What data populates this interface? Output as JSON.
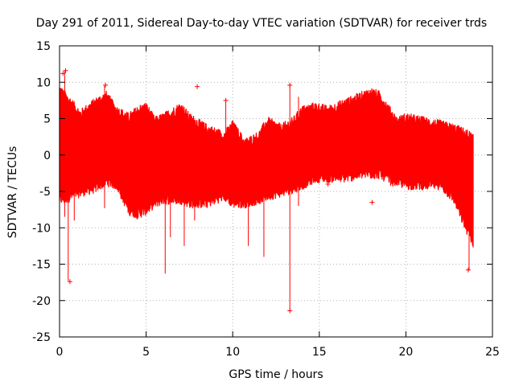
{
  "chart_data": {
    "type": "scatter",
    "title": "Day 291 of 2011, Sidereal Day-to-day VTEC variation (SDTVAR) for receiver trds",
    "xlabel": "GPS time / hours",
    "ylabel": "SDTVAR / TECUs",
    "xlim": [
      0,
      25
    ],
    "ylim": [
      -25,
      15
    ],
    "xticks": [
      0,
      5,
      10,
      15,
      20,
      25
    ],
    "yticks": [
      -25,
      -20,
      -15,
      -10,
      -5,
      0,
      5,
      10,
      15
    ],
    "grid": true,
    "marker": "+",
    "color": "#ff0000",
    "band": {
      "x": [
        0.0,
        0.3,
        0.7,
        1.2,
        2.0,
        2.7,
        3.3,
        4.0,
        4.5,
        5.0,
        5.5,
        6.0,
        7.0,
        7.5,
        8.5,
        9.5,
        10.0,
        10.7,
        11.5,
        12.0,
        12.8,
        13.5,
        14.0,
        14.8,
        15.5,
        16.5,
        17.5,
        18.0,
        18.5,
        19.2,
        19.5,
        20.0,
        21.0,
        22.0,
        22.8,
        23.3,
        23.7,
        23.9
      ],
      "upper": [
        9.0,
        8.0,
        7.0,
        5.5,
        7.0,
        8.0,
        6.0,
        5.0,
        6.0,
        6.5,
        4.5,
        5.0,
        6.5,
        5.0,
        3.5,
        2.5,
        4.0,
        1.5,
        2.5,
        4.5,
        3.5,
        4.5,
        6.0,
        6.5,
        6.0,
        7.0,
        8.0,
        8.5,
        8.0,
        5.5,
        4.5,
        5.0,
        4.5,
        4.0,
        3.5,
        3.0,
        2.5,
        2.0
      ],
      "lower": [
        -6.0,
        -6.0,
        -5.5,
        -5.0,
        -4.5,
        -3.5,
        -4.0,
        -7.5,
        -8.0,
        -7.5,
        -6.5,
        -6.0,
        -6.0,
        -6.5,
        -6.5,
        -5.5,
        -6.5,
        -6.5,
        -6.0,
        -5.5,
        -5.0,
        -4.5,
        -4.0,
        -3.0,
        -3.0,
        -3.0,
        -2.5,
        -2.5,
        -2.5,
        -3.5,
        -3.5,
        -4.0,
        -4.0,
        -4.0,
        -6.0,
        -9.0,
        -11.0,
        -12.0
      ]
    },
    "spikes": [
      {
        "x": 0.3,
        "y1": 11.5,
        "y2": -8.5
      },
      {
        "x": 0.5,
        "y1": 7.0,
        "y2": -17.3
      },
      {
        "x": 0.85,
        "y1": 6.0,
        "y2": -9.0
      },
      {
        "x": 2.6,
        "y1": 9.5,
        "y2": -7.3
      },
      {
        "x": 6.1,
        "y1": 5.0,
        "y2": -16.3
      },
      {
        "x": 6.4,
        "y1": 4.0,
        "y2": -11.3
      },
      {
        "x": 7.2,
        "y1": 4.0,
        "y2": -12.5
      },
      {
        "x": 7.8,
        "y1": 3.5,
        "y2": -9.0
      },
      {
        "x": 9.6,
        "y1": 7.5,
        "y2": 2.0
      },
      {
        "x": 10.9,
        "y1": 2.0,
        "y2": -12.5
      },
      {
        "x": 11.8,
        "y1": 3.0,
        "y2": -14.0
      },
      {
        "x": 13.3,
        "y1": 9.5,
        "y2": -21.4
      },
      {
        "x": 13.8,
        "y1": 8.0,
        "y2": -7.0
      },
      {
        "x": 17.0,
        "y1": 7.5,
        "y2": -3.0
      },
      {
        "x": 23.65,
        "y1": 3.0,
        "y2": -15.8
      }
    ],
    "outliers": [
      {
        "x": 0.2,
        "y": 11.2
      },
      {
        "x": 0.35,
        "y": 11.6
      },
      {
        "x": 0.6,
        "y": -17.4
      },
      {
        "x": 2.65,
        "y": 9.6
      },
      {
        "x": 7.95,
        "y": 9.4
      },
      {
        "x": 9.6,
        "y": 7.5
      },
      {
        "x": 13.3,
        "y": -21.4
      },
      {
        "x": 13.3,
        "y": 9.6
      },
      {
        "x": 15.5,
        "y": -4.0
      },
      {
        "x": 18.05,
        "y": -6.5
      },
      {
        "x": 23.6,
        "y": -15.8
      }
    ]
  }
}
